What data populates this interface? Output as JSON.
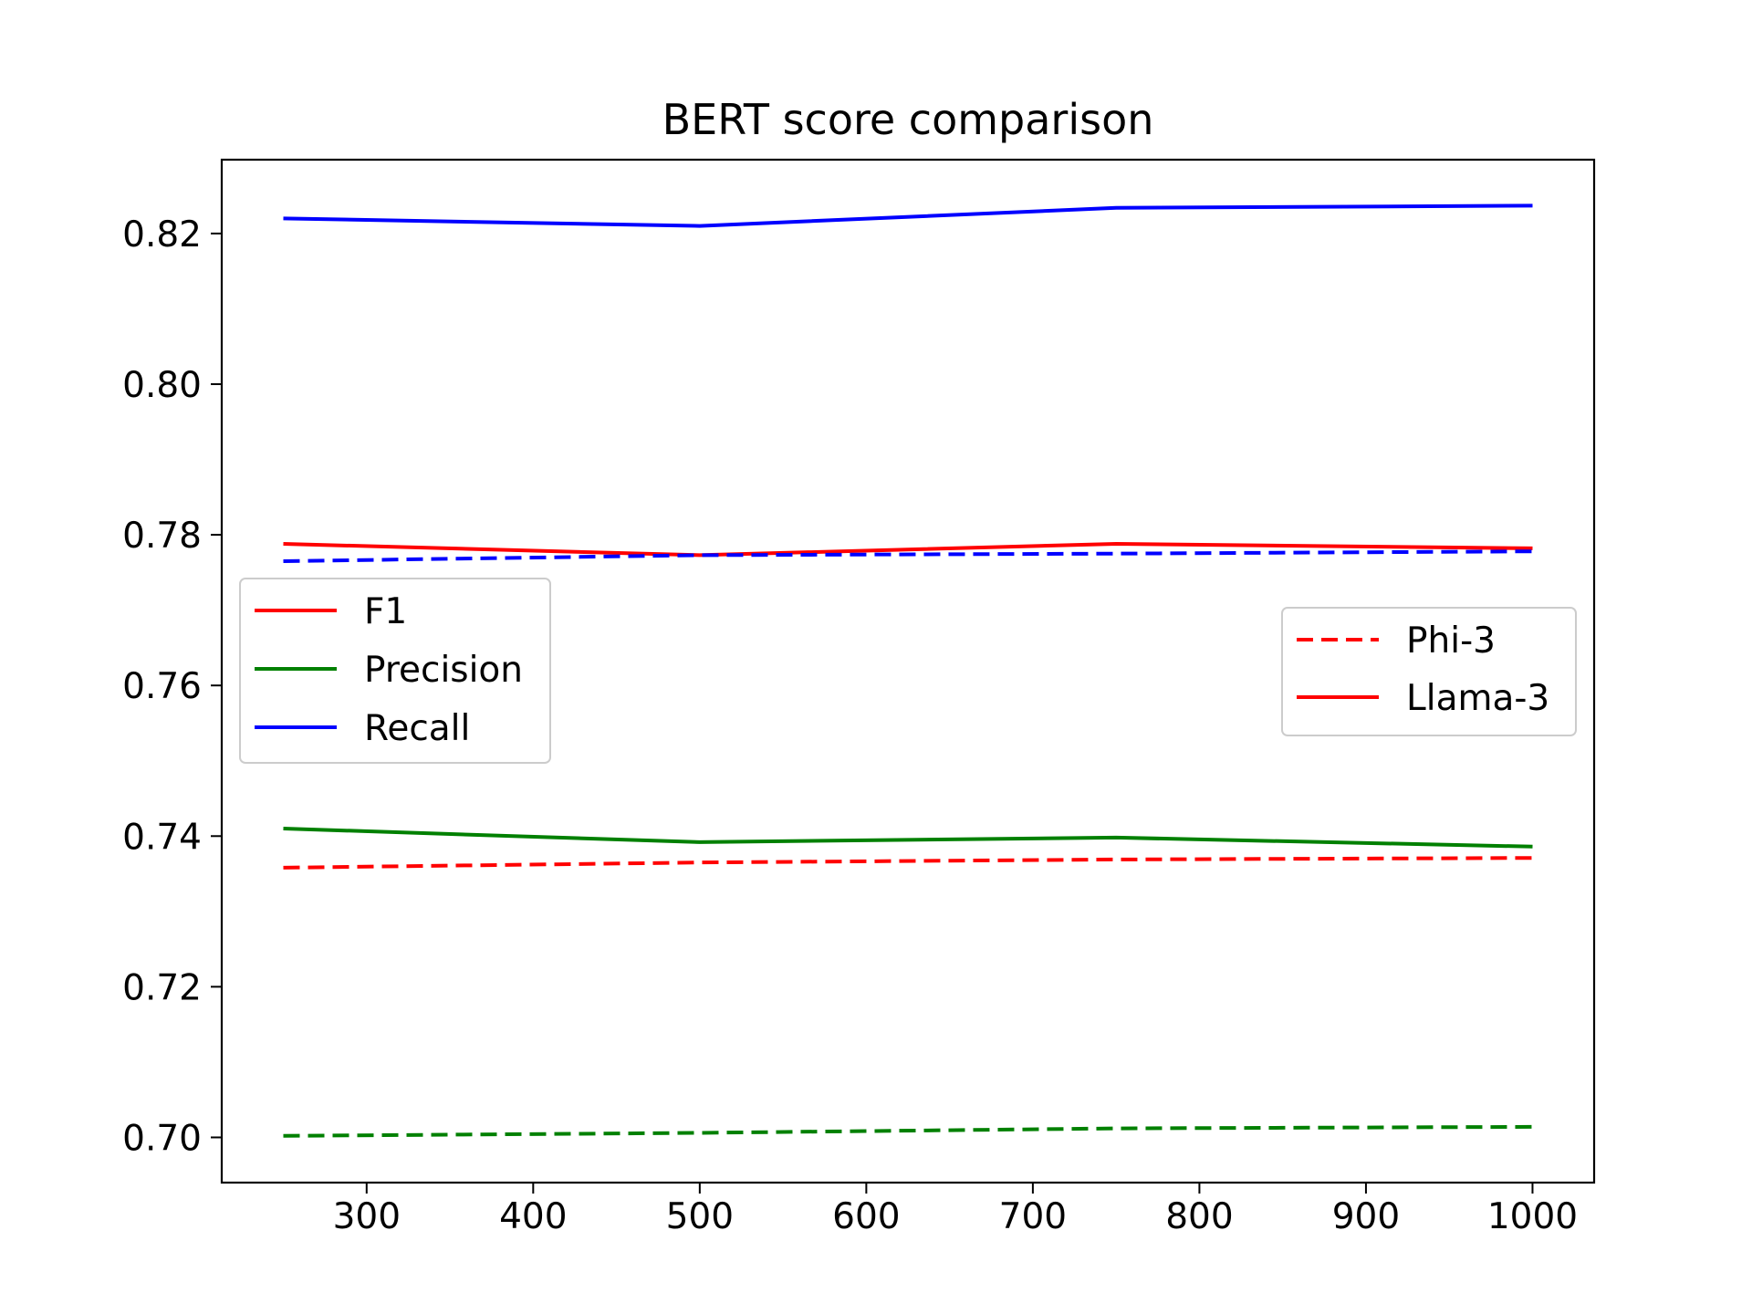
{
  "chart_data": {
    "type": "line",
    "title": "BERT score comparison",
    "xlabel": "",
    "ylabel": "",
    "x": [
      250,
      500,
      750,
      1000
    ],
    "xlim": [
      213,
      1037
    ],
    "ylim": [
      0.694,
      0.8298
    ],
    "xticks": [
      300,
      400,
      500,
      600,
      700,
      800,
      900,
      1000
    ],
    "yticks": [
      0.7,
      0.72,
      0.74,
      0.76,
      0.78,
      0.8,
      0.82
    ],
    "grid": false,
    "series": [
      {
        "metric": "F1",
        "model": "Llama-3",
        "color": "#ff0000",
        "dash": "solid",
        "values": [
          0.7788,
          0.7773,
          0.7788,
          0.7782
        ]
      },
      {
        "metric": "Precision",
        "model": "Llama-3",
        "color": "#008000",
        "dash": "solid",
        "values": [
          0.741,
          0.7392,
          0.7398,
          0.7386
        ]
      },
      {
        "metric": "Recall",
        "model": "Llama-3",
        "color": "#0000ff",
        "dash": "solid",
        "values": [
          0.822,
          0.821,
          0.8234,
          0.8237
        ]
      },
      {
        "metric": "F1",
        "model": "Phi-3",
        "color": "#ff0000",
        "dash": "dashed",
        "values": [
          0.7358,
          0.7365,
          0.7369,
          0.7371
        ]
      },
      {
        "metric": "Precision",
        "model": "Phi-3",
        "color": "#008000",
        "dash": "dashed",
        "values": [
          0.7002,
          0.7006,
          0.7012,
          0.7014
        ]
      },
      {
        "metric": "Recall",
        "model": "Phi-3",
        "color": "#0000ff",
        "dash": "dashed",
        "values": [
          0.7765,
          0.7773,
          0.7775,
          0.7778
        ]
      }
    ],
    "legends": [
      {
        "placement": "center-left",
        "entries": [
          {
            "label": "F1",
            "color": "#ff0000",
            "dash": "solid"
          },
          {
            "label": "Precision",
            "color": "#008000",
            "dash": "solid"
          },
          {
            "label": "Recall",
            "color": "#0000ff",
            "dash": "solid"
          }
        ]
      },
      {
        "placement": "center-right",
        "entries": [
          {
            "label": "Phi-3",
            "color": "#ff0000",
            "dash": "dashed"
          },
          {
            "label": "Llama-3",
            "color": "#ff0000",
            "dash": "solid"
          }
        ]
      }
    ]
  }
}
